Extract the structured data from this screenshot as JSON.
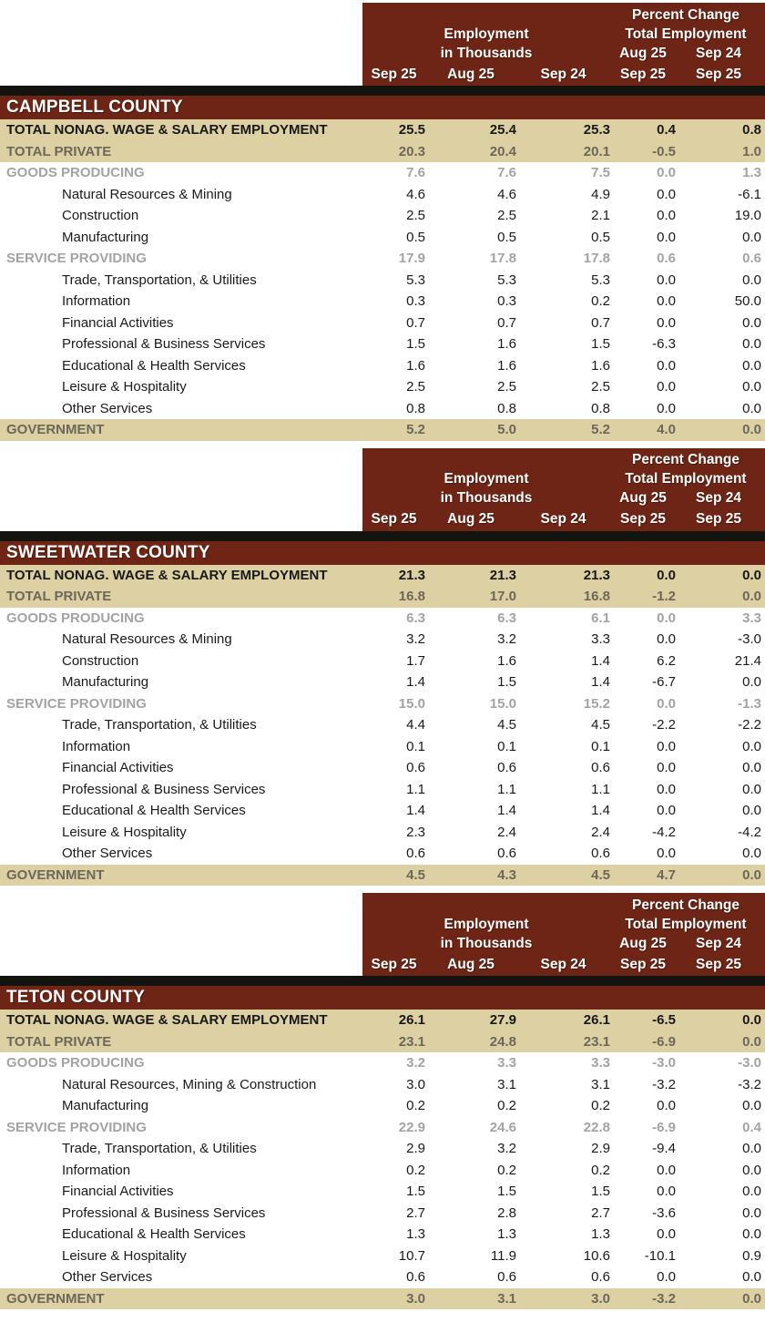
{
  "colors": {
    "maroon": "#6E2515",
    "tan": "#DDD1A3",
    "divider_black": "#131310",
    "gray_on_white": "#A3A3A3",
    "gray_on_tan": "#6C675A"
  },
  "table": {
    "header": {
      "percent_change_label": "Percent Change",
      "total_employment_label": "Total Employment",
      "employment_label": "Employment",
      "in_thousands_label": "in Thousands",
      "value_col_labels": [
        "Sep 25",
        "Aug 25",
        "Sep 24"
      ],
      "pct_col_aug": {
        "top": "Aug 25",
        "bottom": "Sep 25"
      },
      "pct_col_sep": {
        "top": "Sep 24",
        "bottom": "Sep 25"
      }
    },
    "sections": [
      {
        "county": "CAMPBELL COUNTY",
        "rows": [
          {
            "label": "TOTAL NONAG. WAGE & SALARY EMPLOYMENT",
            "style": "total",
            "values": [
              "25.5",
              "25.4",
              "25.3",
              "0.4",
              "0.8"
            ]
          },
          {
            "label": "TOTAL PRIVATE",
            "style": "subtotal",
            "values": [
              "20.3",
              "20.4",
              "20.1",
              "-0.5",
              "1.0"
            ]
          },
          {
            "label": "GOODS PRODUCING",
            "style": "group",
            "values": [
              "7.6",
              "7.6",
              "7.5",
              "0.0",
              "1.3"
            ]
          },
          {
            "label": "Natural Resources & Mining",
            "style": "detail",
            "values": [
              "4.6",
              "4.6",
              "4.9",
              "0.0",
              "-6.1"
            ]
          },
          {
            "label": "Construction",
            "style": "detail",
            "values": [
              "2.5",
              "2.5",
              "2.1",
              "0.0",
              "19.0"
            ]
          },
          {
            "label": "Manufacturing",
            "style": "detail",
            "values": [
              "0.5",
              "0.5",
              "0.5",
              "0.0",
              "0.0"
            ]
          },
          {
            "label": "SERVICE PROVIDING",
            "style": "group",
            "values": [
              "17.9",
              "17.8",
              "17.8",
              "0.6",
              "0.6"
            ]
          },
          {
            "label": "Trade, Transportation, & Utilities",
            "style": "detail",
            "values": [
              "5.3",
              "5.3",
              "5.3",
              "0.0",
              "0.0"
            ]
          },
          {
            "label": "Information",
            "style": "detail",
            "values": [
              "0.3",
              "0.3",
              "0.2",
              "0.0",
              "50.0"
            ]
          },
          {
            "label": "Financial Activities",
            "style": "detail",
            "values": [
              "0.7",
              "0.7",
              "0.7",
              "0.0",
              "0.0"
            ]
          },
          {
            "label": "Professional & Business Services",
            "style": "detail",
            "values": [
              "1.5",
              "1.6",
              "1.5",
              "-6.3",
              "0.0"
            ]
          },
          {
            "label": "Educational & Health Services",
            "style": "detail",
            "values": [
              "1.6",
              "1.6",
              "1.6",
              "0.0",
              "0.0"
            ]
          },
          {
            "label": "Leisure & Hospitality",
            "style": "detail",
            "values": [
              "2.5",
              "2.5",
              "2.5",
              "0.0",
              "0.0"
            ]
          },
          {
            "label": "Other Services",
            "style": "detail",
            "values": [
              "0.8",
              "0.8",
              "0.8",
              "0.0",
              "0.0"
            ]
          },
          {
            "label": "GOVERNMENT",
            "style": "subtotal",
            "values": [
              "5.2",
              "5.0",
              "5.2",
              "4.0",
              "0.0"
            ]
          }
        ]
      },
      {
        "county": "SWEETWATER COUNTY",
        "rows": [
          {
            "label": "TOTAL NONAG. WAGE & SALARY EMPLOYMENT",
            "style": "total",
            "values": [
              "21.3",
              "21.3",
              "21.3",
              "0.0",
              "0.0"
            ]
          },
          {
            "label": "TOTAL PRIVATE",
            "style": "subtotal",
            "values": [
              "16.8",
              "17.0",
              "16.8",
              "-1.2",
              "0.0"
            ]
          },
          {
            "label": "GOODS PRODUCING",
            "style": "group",
            "values": [
              "6.3",
              "6.3",
              "6.1",
              "0.0",
              "3.3"
            ]
          },
          {
            "label": "Natural Resources & Mining",
            "style": "detail",
            "values": [
              "3.2",
              "3.2",
              "3.3",
              "0.0",
              "-3.0"
            ]
          },
          {
            "label": "Construction",
            "style": "detail",
            "values": [
              "1.7",
              "1.6",
              "1.4",
              "6.2",
              "21.4"
            ]
          },
          {
            "label": "Manufacturing",
            "style": "detail",
            "values": [
              "1.4",
              "1.5",
              "1.4",
              "-6.7",
              "0.0"
            ]
          },
          {
            "label": "SERVICE PROVIDING",
            "style": "group",
            "values": [
              "15.0",
              "15.0",
              "15.2",
              "0.0",
              "-1.3"
            ]
          },
          {
            "label": "Trade, Transportation, & Utilities",
            "style": "detail",
            "values": [
              "4.4",
              "4.5",
              "4.5",
              "-2.2",
              "-2.2"
            ]
          },
          {
            "label": "Information",
            "style": "detail",
            "values": [
              "0.1",
              "0.1",
              "0.1",
              "0.0",
              "0.0"
            ]
          },
          {
            "label": "Financial Activities",
            "style": "detail",
            "values": [
              "0.6",
              "0.6",
              "0.6",
              "0.0",
              "0.0"
            ]
          },
          {
            "label": "Professional & Business Services",
            "style": "detail",
            "values": [
              "1.1",
              "1.1",
              "1.1",
              "0.0",
              "0.0"
            ]
          },
          {
            "label": "Educational & Health Services",
            "style": "detail",
            "values": [
              "1.4",
              "1.4",
              "1.4",
              "0.0",
              "0.0"
            ]
          },
          {
            "label": "Leisure & Hospitality",
            "style": "detail",
            "values": [
              "2.3",
              "2.4",
              "2.4",
              "-4.2",
              "-4.2"
            ]
          },
          {
            "label": "Other Services",
            "style": "detail",
            "values": [
              "0.6",
              "0.6",
              "0.6",
              "0.0",
              "0.0"
            ]
          },
          {
            "label": "GOVERNMENT",
            "style": "subtotal",
            "values": [
              "4.5",
              "4.3",
              "4.5",
              "4.7",
              "0.0"
            ]
          }
        ]
      },
      {
        "county": "TETON COUNTY",
        "rows": [
          {
            "label": "TOTAL NONAG. WAGE & SALARY EMPLOYMENT",
            "style": "total",
            "values": [
              "26.1",
              "27.9",
              "26.1",
              "-6.5",
              "0.0"
            ]
          },
          {
            "label": "TOTAL PRIVATE",
            "style": "subtotal",
            "values": [
              "23.1",
              "24.8",
              "23.1",
              "-6.9",
              "0.0"
            ]
          },
          {
            "label": "GOODS PRODUCING",
            "style": "group",
            "values": [
              "3.2",
              "3.3",
              "3.3",
              "-3.0",
              "-3.0"
            ]
          },
          {
            "label": "Natural Resources, Mining & Construction",
            "style": "detail",
            "values": [
              "3.0",
              "3.1",
              "3.1",
              "-3.2",
              "-3.2"
            ]
          },
          {
            "label": "Manufacturing",
            "style": "detail",
            "values": [
              "0.2",
              "0.2",
              "0.2",
              "0.0",
              "0.0"
            ]
          },
          {
            "label": "SERVICE PROVIDING",
            "style": "group",
            "values": [
              "22.9",
              "24.6",
              "22.8",
              "-6.9",
              "0.4"
            ]
          },
          {
            "label": "Trade, Transportation, & Utilities",
            "style": "detail",
            "values": [
              "2.9",
              "3.2",
              "2.9",
              "-9.4",
              "0.0"
            ]
          },
          {
            "label": "Information",
            "style": "detail",
            "values": [
              "0.2",
              "0.2",
              "0.2",
              "0.0",
              "0.0"
            ]
          },
          {
            "label": "Financial Activities",
            "style": "detail",
            "values": [
              "1.5",
              "1.5",
              "1.5",
              "0.0",
              "0.0"
            ]
          },
          {
            "label": "Professional & Business Services",
            "style": "detail",
            "values": [
              "2.7",
              "2.8",
              "2.7",
              "-3.6",
              "0.0"
            ]
          },
          {
            "label": "Educational & Health Services",
            "style": "detail",
            "values": [
              "1.3",
              "1.3",
              "1.3",
              "0.0",
              "0.0"
            ]
          },
          {
            "label": "Leisure & Hospitality",
            "style": "detail",
            "values": [
              "10.7",
              "11.9",
              "10.6",
              "-10.1",
              "0.9"
            ]
          },
          {
            "label": "Other Services",
            "style": "detail",
            "values": [
              "0.6",
              "0.6",
              "0.6",
              "0.0",
              "0.0"
            ]
          },
          {
            "label": "GOVERNMENT",
            "style": "subtotal",
            "values": [
              "3.0",
              "3.1",
              "3.0",
              "-3.2",
              "0.0"
            ]
          }
        ]
      }
    ]
  }
}
